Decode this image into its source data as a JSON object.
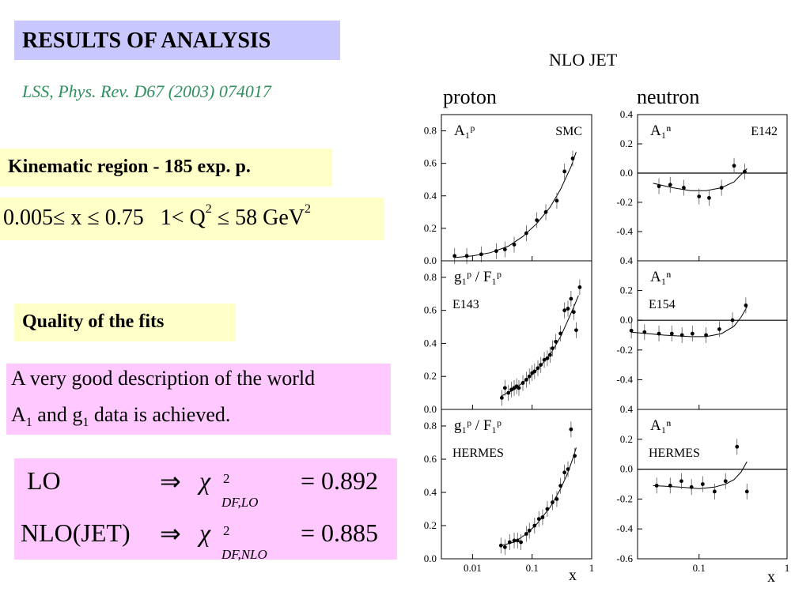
{
  "slide": {
    "title": "RESULTS OF ANALYSIS",
    "reference": "LSS, Phys. Rev. D67 (2003) 074017",
    "kinematic_region": "Kinematic region - 185 exp. p.",
    "range_x": "0.005≤ x ≤ 0.75",
    "range_q_prefix": "1< Q",
    "range_q_exp": "2",
    "range_q_suffix": " ≤ 58  GeV",
    "range_gev_exp": "2",
    "quality_heading": "Quality of the fits",
    "description_line1": "A very good description of the world",
    "description_line2_a": "A",
    "description_line2_a_sub": "1",
    "description_line2_mid": " and  g",
    "description_line2_g_sub": "1",
    "description_line2_end": " data is achieved.",
    "fit_lo_label": "LO",
    "fit_lo_sub": "DF,LO",
    "fit_lo_value": "= 0.892",
    "fit_nlo_label": "NLO(JET)",
    "fit_nlo_sub": "DF,NLO",
    "fit_nlo_value": "= 0.885",
    "implies": "⇒",
    "chi": "χ",
    "chi_sup": "2"
  },
  "figure": {
    "header": "NLO JET",
    "col_proton": "proton",
    "col_neutron": "neutron",
    "x_axis_label": "x"
  },
  "chart_data": [
    {
      "type": "scatter",
      "panel": "proton-1",
      "label": "A₁ᵖ",
      "experiment": "SMC",
      "xscale": "log",
      "xlim": [
        0.003,
        1
      ],
      "ylim": [
        0,
        0.9
      ],
      "yticks": [
        "0.0",
        "0.2",
        "0.4",
        "0.6",
        "0.8"
      ],
      "points": [
        [
          0.005,
          0.03
        ],
        [
          0.008,
          0.03
        ],
        [
          0.014,
          0.04
        ],
        [
          0.025,
          0.06
        ],
        [
          0.035,
          0.07
        ],
        [
          0.05,
          0.1
        ],
        [
          0.08,
          0.17
        ],
        [
          0.12,
          0.25
        ],
        [
          0.17,
          0.3
        ],
        [
          0.26,
          0.37
        ],
        [
          0.35,
          0.55
        ],
        [
          0.48,
          0.63
        ]
      ],
      "fit": [
        [
          0.005,
          0.02
        ],
        [
          0.01,
          0.03
        ],
        [
          0.02,
          0.05
        ],
        [
          0.04,
          0.09
        ],
        [
          0.07,
          0.15
        ],
        [
          0.12,
          0.23
        ],
        [
          0.2,
          0.33
        ],
        [
          0.3,
          0.44
        ],
        [
          0.45,
          0.58
        ],
        [
          0.55,
          0.67
        ]
      ]
    },
    {
      "type": "scatter",
      "panel": "proton-2",
      "label": "g₁ᵖ / F₁ᵖ",
      "experiment": "E143",
      "xscale": "log",
      "xlim": [
        0.003,
        1
      ],
      "ylim": [
        0,
        0.9
      ],
      "yticks": [
        "0.0",
        "0.2",
        "0.4",
        "0.6",
        "0.8"
      ],
      "points": [
        [
          0.031,
          0.07
        ],
        [
          0.035,
          0.13
        ],
        [
          0.04,
          0.1
        ],
        [
          0.045,
          0.12
        ],
        [
          0.05,
          0.13
        ],
        [
          0.055,
          0.14
        ],
        [
          0.06,
          0.13
        ],
        [
          0.07,
          0.16
        ],
        [
          0.08,
          0.18
        ],
        [
          0.09,
          0.2
        ],
        [
          0.1,
          0.22
        ],
        [
          0.11,
          0.23
        ],
        [
          0.125,
          0.25
        ],
        [
          0.14,
          0.27
        ],
        [
          0.16,
          0.3
        ],
        [
          0.18,
          0.31
        ],
        [
          0.2,
          0.33
        ],
        [
          0.22,
          0.37
        ],
        [
          0.25,
          0.41
        ],
        [
          0.3,
          0.46
        ],
        [
          0.35,
          0.6
        ],
        [
          0.4,
          0.61
        ],
        [
          0.45,
          0.67
        ],
        [
          0.5,
          0.59
        ],
        [
          0.55,
          0.48
        ],
        [
          0.63,
          0.74
        ]
      ],
      "fit": [
        [
          0.03,
          0.08
        ],
        [
          0.05,
          0.12
        ],
        [
          0.08,
          0.18
        ],
        [
          0.12,
          0.24
        ],
        [
          0.2,
          0.33
        ],
        [
          0.3,
          0.44
        ],
        [
          0.4,
          0.54
        ],
        [
          0.5,
          0.62
        ],
        [
          0.6,
          0.69
        ]
      ]
    },
    {
      "type": "scatter",
      "panel": "proton-3",
      "label": "g₁ᵖ / F₁ᵖ",
      "experiment": "HERMES",
      "xscale": "log",
      "xlim": [
        0.003,
        1
      ],
      "ylim": [
        0,
        0.9
      ],
      "yticks": [
        "0.0",
        "0.2",
        "0.4",
        "0.6",
        "0.8"
      ],
      "xticks": [
        "0.01",
        "0.1",
        "1"
      ],
      "points": [
        [
          0.03,
          0.08
        ],
        [
          0.035,
          0.07
        ],
        [
          0.042,
          0.1
        ],
        [
          0.05,
          0.11
        ],
        [
          0.057,
          0.11
        ],
        [
          0.065,
          0.1
        ],
        [
          0.08,
          0.15
        ],
        [
          0.09,
          0.17
        ],
        [
          0.11,
          0.2
        ],
        [
          0.13,
          0.24
        ],
        [
          0.15,
          0.25
        ],
        [
          0.18,
          0.3
        ],
        [
          0.22,
          0.34
        ],
        [
          0.26,
          0.36
        ],
        [
          0.3,
          0.44
        ],
        [
          0.35,
          0.52
        ],
        [
          0.4,
          0.54
        ],
        [
          0.45,
          0.78
        ],
        [
          0.52,
          0.62
        ]
      ],
      "fit": [
        [
          0.03,
          0.08
        ],
        [
          0.05,
          0.1
        ],
        [
          0.08,
          0.15
        ],
        [
          0.12,
          0.21
        ],
        [
          0.2,
          0.31
        ],
        [
          0.3,
          0.42
        ],
        [
          0.4,
          0.52
        ],
        [
          0.5,
          0.62
        ],
        [
          0.55,
          0.67
        ]
      ]
    },
    {
      "type": "scatter",
      "panel": "neutron-1",
      "label": "A₁ⁿ",
      "experiment": "E142",
      "xscale": "log",
      "xlim": [
        0.02,
        1
      ],
      "ylim": [
        -0.6,
        0.4
      ],
      "yticks": [
        "-0.4",
        "-0.2",
        "0.0",
        "0.2",
        "0.4"
      ],
      "points": [
        [
          0.035,
          -0.09
        ],
        [
          0.047,
          -0.08
        ],
        [
          0.067,
          -0.1
        ],
        [
          0.1,
          -0.16
        ],
        [
          0.13,
          -0.17
        ],
        [
          0.18,
          -0.1
        ],
        [
          0.25,
          0.05
        ],
        [
          0.33,
          0.01
        ]
      ],
      "fit": [
        [
          0.03,
          -0.07
        ],
        [
          0.05,
          -0.1
        ],
        [
          0.08,
          -0.12
        ],
        [
          0.12,
          -0.12
        ],
        [
          0.18,
          -0.1
        ],
        [
          0.25,
          -0.06
        ],
        [
          0.3,
          -0.01
        ],
        [
          0.35,
          0.03
        ]
      ]
    },
    {
      "type": "scatter",
      "panel": "neutron-2",
      "label": "A₁ⁿ",
      "experiment": "E154",
      "xscale": "log",
      "xlim": [
        0.02,
        1
      ],
      "ylim": [
        -0.6,
        0.4
      ],
      "yticks": [
        "-0.4",
        "-0.2",
        "0.0",
        "0.2",
        "0.4"
      ],
      "points": [
        [
          0.017,
          -0.07
        ],
        [
          0.024,
          -0.08
        ],
        [
          0.035,
          -0.09
        ],
        [
          0.049,
          -0.09
        ],
        [
          0.064,
          -0.1
        ],
        [
          0.084,
          -0.09
        ],
        [
          0.12,
          -0.1
        ],
        [
          0.17,
          -0.06
        ],
        [
          0.24,
          0.0
        ],
        [
          0.34,
          0.1
        ]
      ],
      "fit": [
        [
          0.017,
          -0.08
        ],
        [
          0.04,
          -0.1
        ],
        [
          0.08,
          -0.11
        ],
        [
          0.12,
          -0.11
        ],
        [
          0.18,
          -0.09
        ],
        [
          0.25,
          -0.04
        ],
        [
          0.3,
          0.02
        ],
        [
          0.35,
          0.09
        ]
      ]
    },
    {
      "type": "scatter",
      "panel": "neutron-3",
      "label": "A₁ⁿ",
      "experiment": "HERMES",
      "xscale": "log",
      "xlim": [
        0.02,
        1
      ],
      "ylim": [
        -0.6,
        0.4
      ],
      "yticks": [
        "-0.6",
        "-0.4",
        "-0.2",
        "0.0",
        "0.2",
        "0.4"
      ],
      "xticks": [
        "0.1",
        "1"
      ],
      "points": [
        [
          0.033,
          -0.11
        ],
        [
          0.047,
          -0.11
        ],
        [
          0.063,
          -0.08
        ],
        [
          0.082,
          -0.12
        ],
        [
          0.11,
          -0.1
        ],
        [
          0.15,
          -0.15
        ],
        [
          0.2,
          -0.08
        ],
        [
          0.27,
          0.15
        ],
        [
          0.35,
          -0.15
        ]
      ],
      "fit": [
        [
          0.03,
          -0.11
        ],
        [
          0.06,
          -0.12
        ],
        [
          0.1,
          -0.13
        ],
        [
          0.15,
          -0.12
        ],
        [
          0.2,
          -0.1
        ],
        [
          0.25,
          -0.07
        ],
        [
          0.3,
          -0.02
        ],
        [
          0.35,
          0.05
        ]
      ]
    }
  ]
}
